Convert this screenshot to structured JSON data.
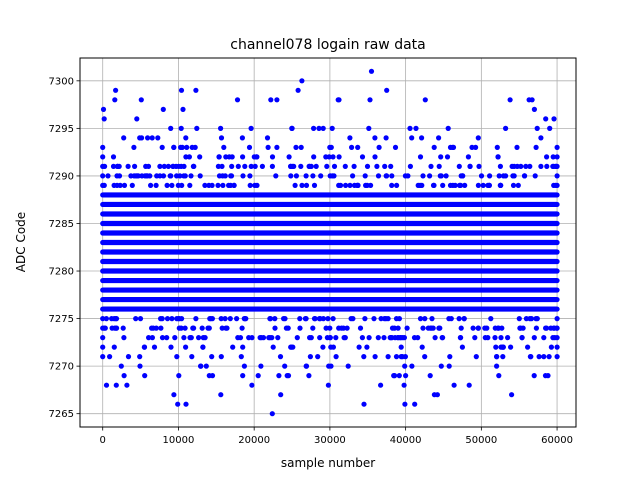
{
  "chart_data": {
    "type": "scatter",
    "title": "channel078 logain raw data",
    "xlabel": "sample number",
    "ylabel": "ADC Code",
    "xlim": [
      -3000,
      62500
    ],
    "ylim": [
      7263.6,
      7302.4
    ],
    "xticks": [
      0,
      10000,
      20000,
      30000,
      40000,
      50000,
      60000
    ],
    "xtick_labels": [
      "0",
      "10000",
      "20000",
      "30000",
      "40000",
      "50000",
      "60000"
    ],
    "yticks": [
      7265,
      7270,
      7275,
      7280,
      7285,
      7290,
      7295,
      7300
    ],
    "ytick_labels": [
      "7265",
      "7270",
      "7275",
      "7280",
      "7285",
      "7290",
      "7295",
      "7300"
    ],
    "grid": true,
    "marker_color": "#0000ff",
    "series": [
      {
        "x_range": [
          0,
          60000
        ],
        "core_y_range": [
          7271,
          7293
        ],
        "outliers": [
          {
            "x": 100,
            "y": 7297
          },
          {
            "x": 200,
            "y": 7296
          },
          {
            "x": 500,
            "y": 7268
          },
          {
            "x": 1700,
            "y": 7299
          },
          {
            "x": 1600,
            "y": 7298
          },
          {
            "x": 1800,
            "y": 7268
          },
          {
            "x": 3200,
            "y": 7268
          },
          {
            "x": 5100,
            "y": 7298
          },
          {
            "x": 4500,
            "y": 7296
          },
          {
            "x": 8000,
            "y": 7297
          },
          {
            "x": 9400,
            "y": 7267
          },
          {
            "x": 9900,
            "y": 7266
          },
          {
            "x": 10400,
            "y": 7299
          },
          {
            "x": 10600,
            "y": 7297
          },
          {
            "x": 11000,
            "y": 7266
          },
          {
            "x": 12300,
            "y": 7299
          },
          {
            "x": 14500,
            "y": 7269
          },
          {
            "x": 15600,
            "y": 7267
          },
          {
            "x": 17800,
            "y": 7298
          },
          {
            "x": 19700,
            "y": 7268
          },
          {
            "x": 22200,
            "y": 7298
          },
          {
            "x": 22400,
            "y": 7265
          },
          {
            "x": 23000,
            "y": 7298
          },
          {
            "x": 23500,
            "y": 7267
          },
          {
            "x": 25800,
            "y": 7299
          },
          {
            "x": 26300,
            "y": 7300
          },
          {
            "x": 29800,
            "y": 7268
          },
          {
            "x": 31100,
            "y": 7298
          },
          {
            "x": 31200,
            "y": 7298
          },
          {
            "x": 34500,
            "y": 7266
          },
          {
            "x": 35500,
            "y": 7301
          },
          {
            "x": 35300,
            "y": 7298
          },
          {
            "x": 36700,
            "y": 7268
          },
          {
            "x": 37500,
            "y": 7299
          },
          {
            "x": 39800,
            "y": 7268
          },
          {
            "x": 39900,
            "y": 7266
          },
          {
            "x": 41200,
            "y": 7266
          },
          {
            "x": 42600,
            "y": 7298
          },
          {
            "x": 43800,
            "y": 7267
          },
          {
            "x": 44200,
            "y": 7267
          },
          {
            "x": 46400,
            "y": 7268
          },
          {
            "x": 48400,
            "y": 7268
          },
          {
            "x": 53800,
            "y": 7298
          },
          {
            "x": 54000,
            "y": 7267
          },
          {
            "x": 56300,
            "y": 7298
          },
          {
            "x": 56700,
            "y": 7298
          },
          {
            "x": 57000,
            "y": 7297
          },
          {
            "x": 58500,
            "y": 7296
          },
          {
            "x": 59600,
            "y": 7296
          },
          {
            "x": 58800,
            "y": 7269
          }
        ]
      }
    ]
  }
}
